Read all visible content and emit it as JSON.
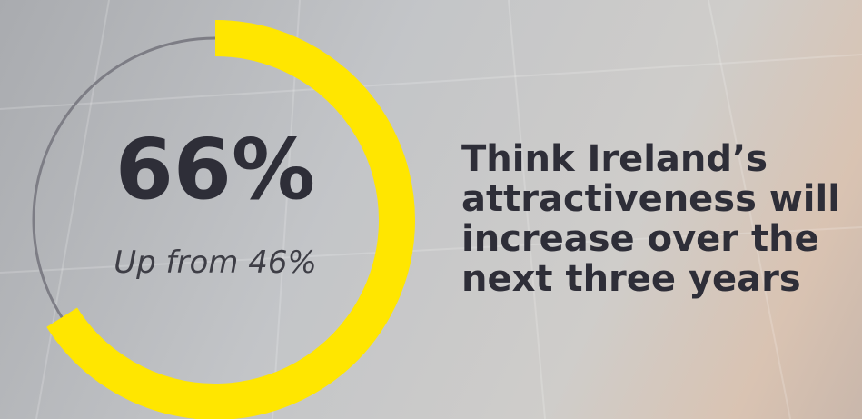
{
  "chart_data": {
    "type": "donut",
    "values": [
      66
    ],
    "value_labels": [
      "66%"
    ],
    "subtitle": "Up from 46%",
    "color": "#ffe600",
    "track_color": "#7d7d85",
    "annotations": [
      "Think Ireland’s",
      "attractiveness will",
      "increase over the",
      "next three years"
    ]
  }
}
